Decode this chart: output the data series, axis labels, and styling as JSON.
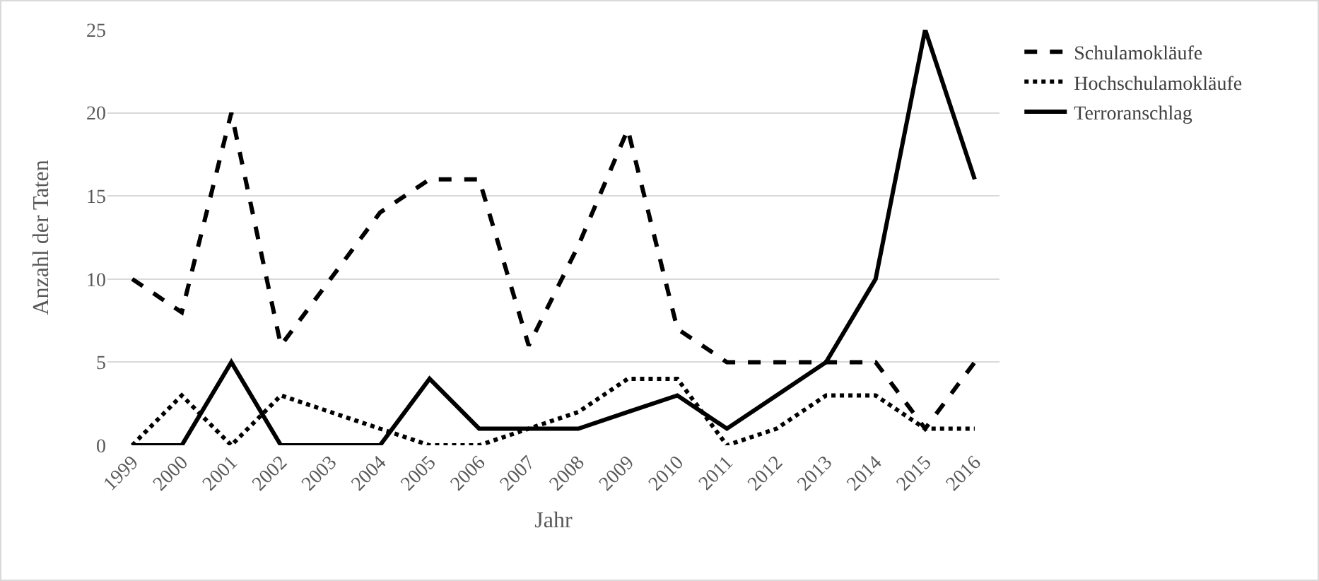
{
  "chart_data": {
    "type": "line",
    "xlabel": "Jahr",
    "ylabel": "Anzahl der Taten",
    "categories": [
      "1999",
      "2000",
      "2001",
      "2002",
      "2003",
      "2004",
      "2005",
      "2006",
      "2007",
      "2008",
      "2009",
      "2010",
      "2011",
      "2012",
      "2013",
      "2014",
      "2015",
      "2016"
    ],
    "series": [
      {
        "name": "Schulamokläufe",
        "color": "#000000",
        "line_style": "dashed",
        "values": [
          10,
          8,
          20,
          6,
          10,
          14,
          16,
          16,
          6,
          12,
          19,
          7,
          5,
          5,
          5,
          5,
          1,
          5
        ]
      },
      {
        "name": "Hochschulamokläufe",
        "color": "#000000",
        "line_style": "dotted",
        "values": [
          0,
          3,
          0,
          3,
          2,
          1,
          0,
          0,
          1,
          2,
          4,
          4,
          0,
          1,
          3,
          3,
          1,
          1
        ]
      },
      {
        "name": "Terroranschlag",
        "color": "#000000",
        "line_style": "solid",
        "values": [
          0,
          0,
          5,
          0,
          0,
          0,
          4,
          1,
          1,
          1,
          2,
          3,
          1,
          3,
          5,
          10,
          25,
          16
        ]
      }
    ],
    "ylim": [
      0,
      25
    ],
    "yticks": [
      0,
      5,
      10,
      15,
      20,
      25
    ],
    "grid": "y",
    "legend": "top right",
    "marker": "none"
  }
}
